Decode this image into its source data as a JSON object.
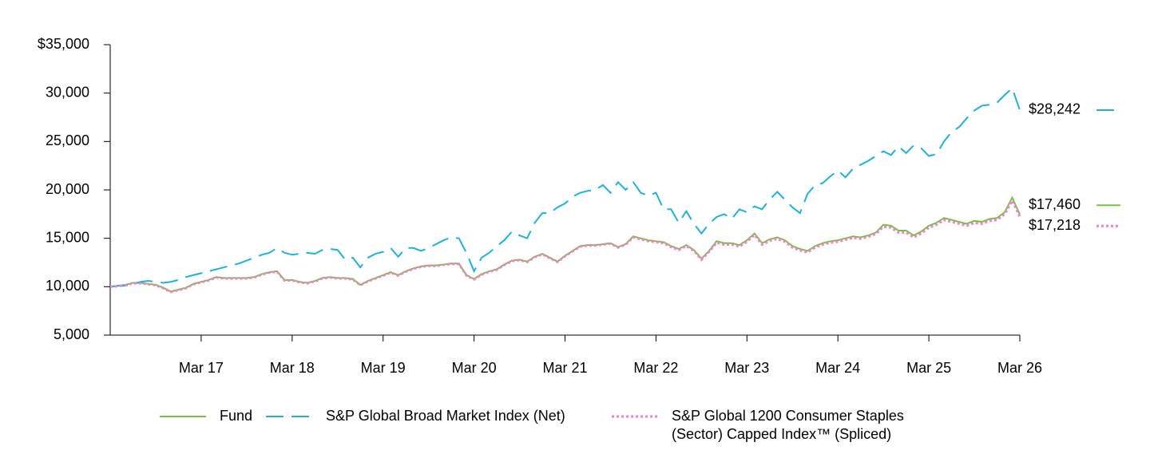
{
  "chart_data": {
    "type": "line",
    "categories": [
      null,
      null,
      null,
      null,
      null,
      null,
      null,
      null,
      null,
      null,
      null,
      null,
      "Mar 17",
      null,
      null,
      null,
      null,
      null,
      null,
      null,
      null,
      null,
      null,
      null,
      "Mar 18",
      null,
      null,
      null,
      null,
      null,
      null,
      null,
      null,
      null,
      null,
      null,
      "Mar 19",
      null,
      null,
      null,
      null,
      null,
      null,
      null,
      null,
      null,
      null,
      null,
      "Mar 20",
      null,
      null,
      null,
      null,
      null,
      null,
      null,
      null,
      null,
      null,
      null,
      "Mar 21",
      null,
      null,
      null,
      null,
      null,
      null,
      null,
      null,
      null,
      null,
      null,
      "Mar 22",
      null,
      null,
      null,
      null,
      null,
      null,
      null,
      null,
      null,
      null,
      null,
      "Mar 23",
      null,
      null,
      null,
      null,
      null,
      null,
      null,
      null,
      null,
      null,
      null,
      "Mar 24",
      null,
      null,
      null,
      null,
      null,
      null,
      null,
      null,
      null,
      null,
      null,
      "Mar 25",
      null,
      null,
      null,
      null,
      null,
      null,
      null,
      null,
      null,
      null,
      null,
      "Mar 26"
    ],
    "series": [
      {
        "name": "Fund",
        "color": "#78c043",
        "dash": "solid",
        "values": [
          10000,
          10100,
          10200,
          10400,
          10400,
          10300,
          10200,
          9900,
          9500,
          9700,
          9900,
          10300,
          10500,
          10700,
          11000,
          10900,
          10900,
          10900,
          10900,
          11000,
          11300,
          11500,
          11600,
          10700,
          10700,
          10500,
          10400,
          10600,
          10900,
          11000,
          10900,
          10900,
          10800,
          10200,
          10600,
          10900,
          11200,
          11500,
          11200,
          11600,
          11900,
          12100,
          12200,
          12200,
          12300,
          12400,
          12400,
          11200,
          10800,
          11300,
          11600,
          11800,
          12300,
          12700,
          12800,
          12600,
          13100,
          13400,
          13000,
          12600,
          13200,
          13700,
          14200,
          14300,
          14300,
          14400,
          14500,
          14100,
          14400,
          15200,
          15000,
          14800,
          14700,
          14600,
          14200,
          13900,
          14300,
          13800,
          12900,
          13700,
          14700,
          14500,
          14500,
          14300,
          14800,
          15500,
          14500,
          14900,
          15100,
          14800,
          14200,
          13900,
          13700,
          14200,
          14500,
          14700,
          14800,
          15000,
          15200,
          15100,
          15300,
          15600,
          16400,
          16300,
          15800,
          15800,
          15300,
          15700,
          16300,
          16600,
          17100,
          16900,
          16700,
          16500,
          16800,
          16700,
          17000,
          17100,
          17700,
          19200,
          17460
        ],
        "value_labels": [
          null,
          null,
          null,
          null,
          null,
          null,
          null,
          null,
          null,
          null,
          null,
          null,
          null,
          null,
          null,
          null,
          null,
          null,
          null,
          null,
          null,
          null,
          null,
          null,
          null,
          null,
          null,
          null,
          null,
          null,
          null,
          null,
          null,
          null,
          null,
          null,
          null,
          null,
          null,
          null,
          null,
          null,
          null,
          null,
          null,
          null,
          null,
          null,
          null,
          null,
          null,
          null,
          null,
          null,
          null,
          null,
          null,
          null,
          null,
          null,
          null,
          null,
          null,
          null,
          null,
          null,
          null,
          null,
          null,
          null,
          null,
          null,
          null,
          null,
          null,
          null,
          null,
          null,
          null,
          null,
          null,
          null,
          null,
          null,
          null,
          null,
          null,
          null,
          null,
          null,
          null,
          null,
          null,
          null,
          null,
          null,
          null,
          null,
          null,
          null,
          null,
          null,
          null,
          null,
          null,
          null,
          null,
          null,
          null,
          null,
          null,
          null,
          null,
          null,
          null,
          null,
          null,
          null,
          null,
          null,
          "$17,460"
        ]
      },
      {
        "name": "S&P Global Broad Market Index (Net)",
        "color": "#1fb0dc",
        "dash": "dashed",
        "values": [
          10000,
          10100,
          10100,
          10300,
          10500,
          10600,
          10500,
          10400,
          10500,
          10700,
          11000,
          11200,
          11400,
          11600,
          11800,
          12000,
          12200,
          12400,
          12700,
          13000,
          13300,
          13500,
          14000,
          13500,
          13300,
          13400,
          13500,
          13400,
          13800,
          13900,
          13800,
          12800,
          13000,
          12000,
          13000,
          13400,
          13600,
          14000,
          13100,
          14000,
          14000,
          13700,
          14000,
          14400,
          14800,
          15100,
          15000,
          13500,
          11600,
          13000,
          13500,
          14200,
          14800,
          15700,
          15300,
          15000,
          16600,
          17600,
          17600,
          18200,
          18600,
          19300,
          19700,
          19900,
          20000,
          20500,
          19700,
          20800,
          20000,
          20800,
          19700,
          19400,
          19700,
          18000,
          18000,
          16600,
          17800,
          16500,
          15500,
          16500,
          17200,
          17500,
          17000,
          18000,
          17700,
          18300,
          18000,
          19000,
          19800,
          19000,
          18200,
          17600,
          19600,
          20500,
          20700,
          21400,
          22000,
          21300,
          22200,
          22600,
          23000,
          23500,
          24000,
          23600,
          24500,
          23800,
          24600,
          24300,
          23500,
          23700,
          25000,
          26000,
          26500,
          27400,
          28200,
          28700,
          28800,
          29000,
          29800,
          30500,
          28242
        ],
        "value_labels": [
          null,
          null,
          null,
          null,
          null,
          null,
          null,
          null,
          null,
          null,
          null,
          null,
          null,
          null,
          null,
          null,
          null,
          null,
          null,
          null,
          null,
          null,
          null,
          null,
          null,
          null,
          null,
          null,
          null,
          null,
          null,
          null,
          null,
          null,
          null,
          null,
          null,
          null,
          null,
          null,
          null,
          null,
          null,
          null,
          null,
          null,
          null,
          null,
          null,
          null,
          null,
          null,
          null,
          null,
          null,
          null,
          null,
          null,
          null,
          null,
          null,
          null,
          null,
          null,
          null,
          null,
          null,
          null,
          null,
          null,
          null,
          null,
          null,
          null,
          null,
          null,
          null,
          null,
          null,
          null,
          null,
          null,
          null,
          null,
          null,
          null,
          null,
          null,
          null,
          null,
          null,
          null,
          null,
          null,
          null,
          null,
          null,
          null,
          null,
          null,
          null,
          null,
          null,
          null,
          null,
          null,
          null,
          null,
          null,
          null,
          null,
          null,
          null,
          null,
          null,
          null,
          null,
          null,
          null,
          null,
          "$28,242"
        ]
      },
      {
        "name": "S&P Global 1200 Consumer Staples (Sector) Capped Index™ (Spliced)",
        "color": "#f27fcf",
        "dash": "dotted",
        "values": [
          10000,
          10050,
          10150,
          10350,
          10350,
          10250,
          10150,
          9850,
          9450,
          9650,
          9850,
          10250,
          10450,
          10650,
          10950,
          10850,
          10850,
          10850,
          10850,
          10950,
          11250,
          11450,
          11550,
          10650,
          10650,
          10450,
          10350,
          10550,
          10850,
          10950,
          10850,
          10850,
          10750,
          10150,
          10550,
          10850,
          11150,
          11450,
          11150,
          11550,
          11850,
          12050,
          12150,
          12150,
          12250,
          12350,
          12350,
          11150,
          10750,
          11250,
          11550,
          11750,
          12250,
          12650,
          12750,
          12550,
          13050,
          13350,
          12950,
          12550,
          13150,
          13650,
          14150,
          14250,
          14250,
          14350,
          14450,
          14050,
          14350,
          15100,
          14900,
          14700,
          14600,
          14500,
          14100,
          13800,
          14200,
          13700,
          12800,
          13600,
          14550,
          14350,
          14350,
          14150,
          14650,
          15350,
          14350,
          14750,
          14950,
          14650,
          14050,
          13750,
          13550,
          14050,
          14350,
          14550,
          14650,
          14850,
          15050,
          14950,
          15150,
          15450,
          16200,
          16100,
          15600,
          15600,
          15100,
          15500,
          16100,
          16400,
          16900,
          16700,
          16500,
          16300,
          16600,
          16500,
          16800,
          16900,
          17500,
          18900,
          17218
        ],
        "value_labels": [
          null,
          null,
          null,
          null,
          null,
          null,
          null,
          null,
          null,
          null,
          null,
          null,
          null,
          null,
          null,
          null,
          null,
          null,
          null,
          null,
          null,
          null,
          null,
          null,
          null,
          null,
          null,
          null,
          null,
          null,
          null,
          null,
          null,
          null,
          null,
          null,
          null,
          null,
          null,
          null,
          null,
          null,
          null,
          null,
          null,
          null,
          null,
          null,
          null,
          null,
          null,
          null,
          null,
          null,
          null,
          null,
          null,
          null,
          null,
          null,
          null,
          null,
          null,
          null,
          null,
          null,
          null,
          null,
          null,
          null,
          null,
          null,
          null,
          null,
          null,
          null,
          null,
          null,
          null,
          null,
          null,
          null,
          null,
          null,
          null,
          null,
          null,
          null,
          null,
          null,
          null,
          null,
          null,
          null,
          null,
          null,
          null,
          null,
          null,
          null,
          null,
          null,
          null,
          null,
          null,
          null,
          null,
          null,
          null,
          null,
          null,
          null,
          null,
          null,
          null,
          null,
          null,
          null,
          null,
          null,
          "$17,218"
        ]
      }
    ],
    "ylim": [
      5000,
      35000
    ],
    "yticks": [
      {
        "value": 5000,
        "label": "5,000"
      },
      {
        "value": 10000,
        "label": "10,000"
      },
      {
        "value": 15000,
        "label": "15,000"
      },
      {
        "value": 20000,
        "label": "20,000"
      },
      {
        "value": 25000,
        "label": "25,000"
      },
      {
        "value": 30000,
        "label": "30,000"
      },
      {
        "value": 35000,
        "label": "$35,000"
      }
    ],
    "grid": false,
    "legend": "bottom"
  }
}
